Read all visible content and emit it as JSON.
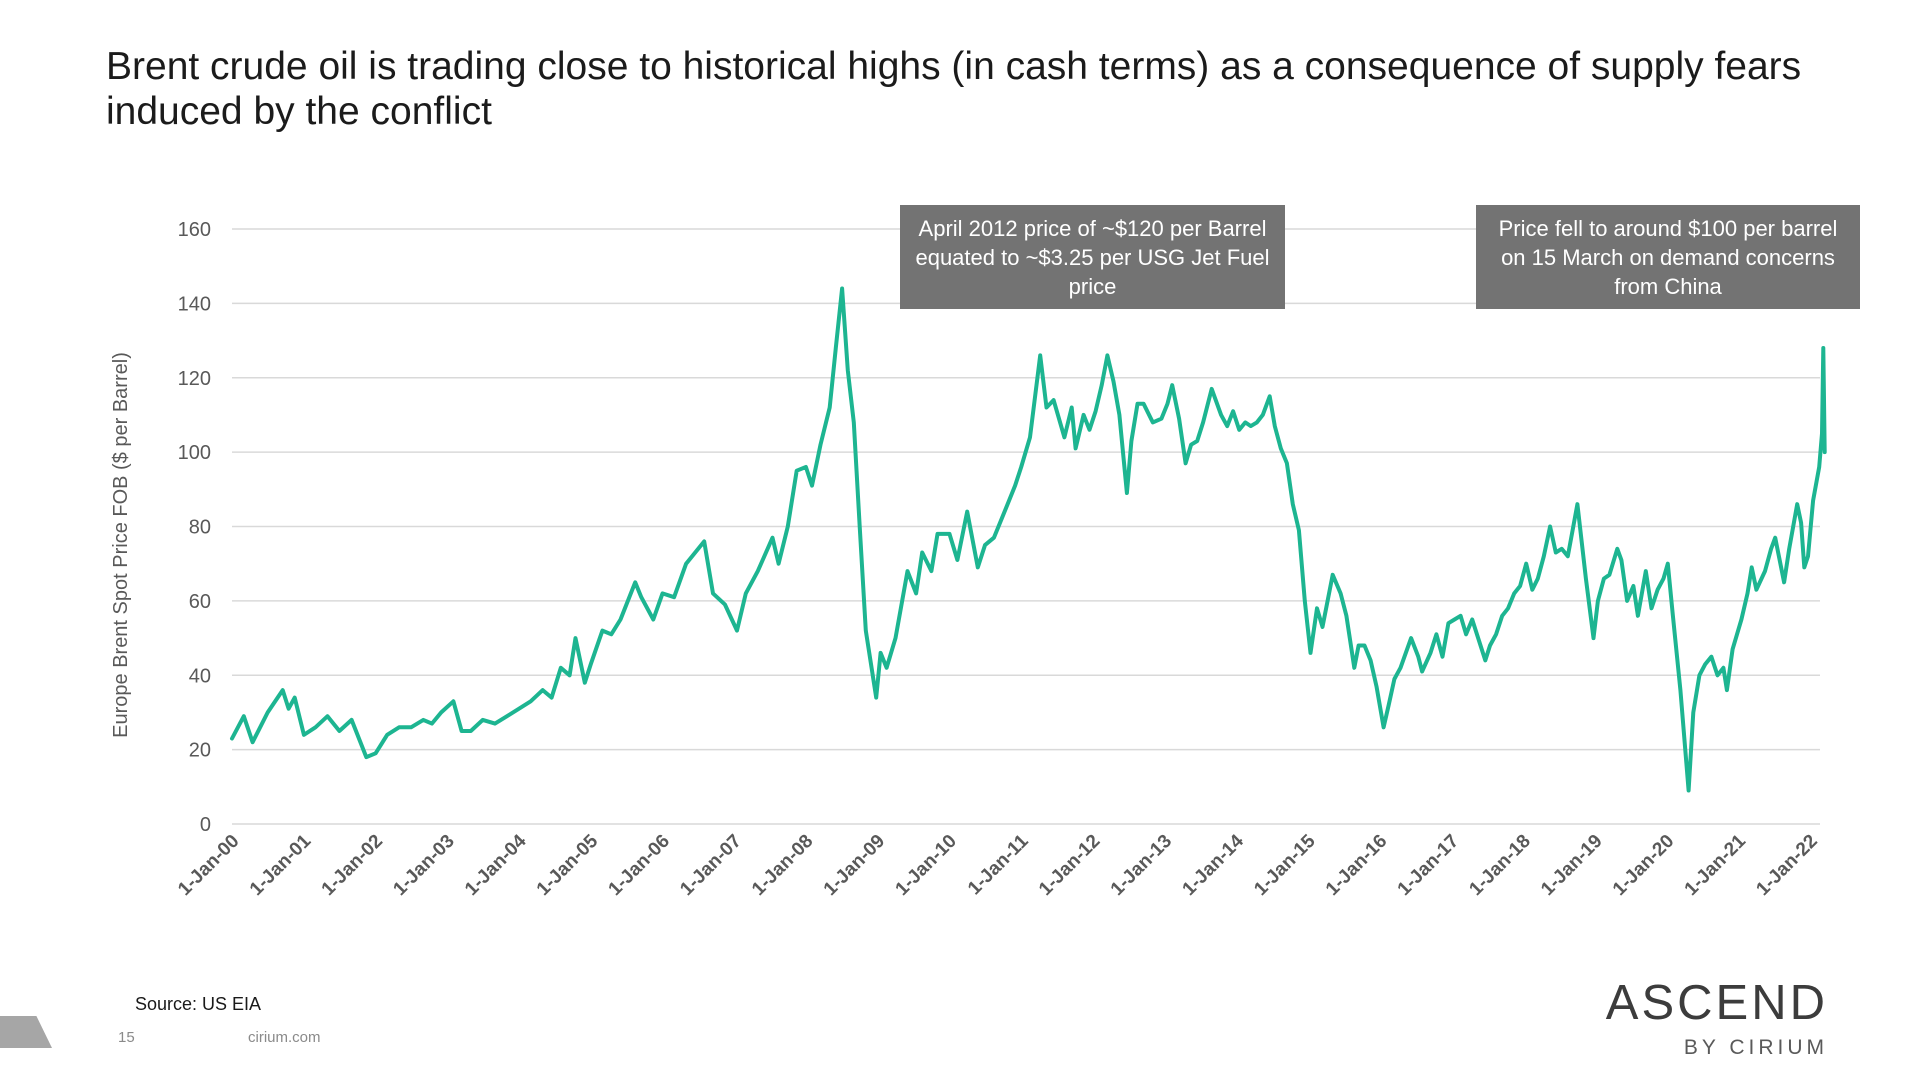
{
  "slide": {
    "title": "Brent crude oil is trading close to historical highs (in cash terms) as a consequence of supply fears induced by the conflict",
    "source": "Source: US EIA",
    "page_number": "15",
    "website": "cirium.com",
    "logo": {
      "main": "ASCEND",
      "sub": "BY CIRIUM"
    }
  },
  "callouts": [
    "April 2012 price of ~$120 per Barrel equated to ~$3.25 per USG Jet Fuel price",
    "Price fell to around $100 per barrel on 15 March on demand concerns from China"
  ],
  "colors": {
    "series": "#1db591",
    "gridline": "#d9d9d9",
    "axis_text": "#595959",
    "callout_bg": "#737373"
  },
  "chart_data": {
    "type": "line",
    "title": "",
    "xlabel": "",
    "ylabel": "Europe Brent Spot Price FOB ($ per Barrel)",
    "ylim": [
      0,
      160
    ],
    "yticks": [
      0,
      20,
      40,
      60,
      80,
      100,
      120,
      140,
      160
    ],
    "xlim": [
      "2000-01-01",
      "2022-03-15"
    ],
    "x_tick_labels": [
      "1-Jan-00",
      "1-Jan-01",
      "1-Jan-02",
      "1-Jan-03",
      "1-Jan-04",
      "1-Jan-05",
      "1-Jan-06",
      "1-Jan-07",
      "1-Jan-08",
      "1-Jan-09",
      "1-Jan-10",
      "1-Jan-11",
      "1-Jan-12",
      "1-Jan-13",
      "1-Jan-14",
      "1-Jan-15",
      "1-Jan-16",
      "1-Jan-17",
      "1-Jan-18",
      "1-Jan-19",
      "1-Jan-20",
      "1-Jan-21",
      "1-Jan-22"
    ],
    "grid": true,
    "legend": "none",
    "series": [
      {
        "points": [
          [
            "2000-01-01",
            23
          ],
          [
            "2000-03-01",
            29
          ],
          [
            "2000-04-15",
            22
          ],
          [
            "2000-07-01",
            30
          ],
          [
            "2000-09-15",
            36
          ],
          [
            "2000-10-15",
            31
          ],
          [
            "2000-11-15",
            34
          ],
          [
            "2001-01-01",
            24
          ],
          [
            "2001-03-01",
            26
          ],
          [
            "2001-05-01",
            29
          ],
          [
            "2001-07-01",
            25
          ],
          [
            "2001-09-01",
            28
          ],
          [
            "2001-11-15",
            18
          ],
          [
            "2002-01-01",
            19
          ],
          [
            "2002-03-01",
            24
          ],
          [
            "2002-05-01",
            26
          ],
          [
            "2002-07-01",
            26
          ],
          [
            "2002-09-01",
            28
          ],
          [
            "2002-10-15",
            27
          ],
          [
            "2002-12-01",
            30
          ],
          [
            "2003-02-01",
            33
          ],
          [
            "2003-03-15",
            25
          ],
          [
            "2003-05-01",
            25
          ],
          [
            "2003-07-01",
            28
          ],
          [
            "2003-09-01",
            27
          ],
          [
            "2003-11-01",
            29
          ],
          [
            "2004-01-01",
            31
          ],
          [
            "2004-03-01",
            33
          ],
          [
            "2004-05-01",
            36
          ],
          [
            "2004-06-15",
            34
          ],
          [
            "2004-08-01",
            42
          ],
          [
            "2004-09-15",
            40
          ],
          [
            "2004-10-15",
            50
          ],
          [
            "2004-12-01",
            38
          ],
          [
            "2005-01-01",
            43
          ],
          [
            "2005-03-01",
            52
          ],
          [
            "2005-04-15",
            51
          ],
          [
            "2005-06-01",
            55
          ],
          [
            "2005-08-15",
            65
          ],
          [
            "2005-09-15",
            61
          ],
          [
            "2005-11-15",
            55
          ],
          [
            "2006-01-01",
            62
          ],
          [
            "2006-03-01",
            61
          ],
          [
            "2006-05-01",
            70
          ],
          [
            "2006-08-01",
            76
          ],
          [
            "2006-09-15",
            62
          ],
          [
            "2006-11-15",
            59
          ],
          [
            "2007-01-15",
            52
          ],
          [
            "2007-03-01",
            62
          ],
          [
            "2007-05-01",
            68
          ],
          [
            "2007-07-15",
            77
          ],
          [
            "2007-08-15",
            70
          ],
          [
            "2007-10-01",
            80
          ],
          [
            "2007-11-15",
            95
          ],
          [
            "2008-01-01",
            96
          ],
          [
            "2008-02-01",
            91
          ],
          [
            "2008-03-15",
            102
          ],
          [
            "2008-05-01",
            112
          ],
          [
            "2008-06-01",
            128
          ],
          [
            "2008-07-03",
            144
          ],
          [
            "2008-08-01",
            122
          ],
          [
            "2008-09-01",
            108
          ],
          [
            "2008-10-01",
            80
          ],
          [
            "2008-11-01",
            52
          ],
          [
            "2008-12-24",
            34
          ],
          [
            "2009-01-15",
            46
          ],
          [
            "2009-02-15",
            42
          ],
          [
            "2009-04-01",
            50
          ],
          [
            "2009-06-01",
            68
          ],
          [
            "2009-07-15",
            62
          ],
          [
            "2009-08-15",
            73
          ],
          [
            "2009-10-01",
            68
          ],
          [
            "2009-11-01",
            78
          ],
          [
            "2010-01-01",
            78
          ],
          [
            "2010-02-10",
            71
          ],
          [
            "2010-04-01",
            84
          ],
          [
            "2010-05-25",
            69
          ],
          [
            "2010-07-01",
            75
          ],
          [
            "2010-08-15",
            77
          ],
          [
            "2010-10-01",
            83
          ],
          [
            "2010-12-01",
            91
          ],
          [
            "2011-01-01",
            96
          ],
          [
            "2011-02-15",
            104
          ],
          [
            "2011-04-08",
            126
          ],
          [
            "2011-05-10",
            112
          ],
          [
            "2011-06-15",
            114
          ],
          [
            "2011-08-09",
            104
          ],
          [
            "2011-09-15",
            112
          ],
          [
            "2011-10-05",
            101
          ],
          [
            "2011-11-15",
            110
          ],
          [
            "2011-12-15",
            106
          ],
          [
            "2012-01-15",
            111
          ],
          [
            "2012-02-15",
            118
          ],
          [
            "2012-03-15",
            126
          ],
          [
            "2012-04-15",
            119
          ],
          [
            "2012-05-15",
            110
          ],
          [
            "2012-06-22",
            89
          ],
          [
            "2012-07-15",
            103
          ],
          [
            "2012-08-15",
            113
          ],
          [
            "2012-09-15",
            113
          ],
          [
            "2012-11-01",
            108
          ],
          [
            "2012-12-15",
            109
          ],
          [
            "2013-01-15",
            113
          ],
          [
            "2013-02-08",
            118
          ],
          [
            "2013-03-15",
            109
          ],
          [
            "2013-04-17",
            97
          ],
          [
            "2013-05-15",
            102
          ],
          [
            "2013-06-15",
            103
          ],
          [
            "2013-07-15",
            108
          ],
          [
            "2013-08-28",
            117
          ],
          [
            "2013-10-15",
            110
          ],
          [
            "2013-11-15",
            107
          ],
          [
            "2013-12-15",
            111
          ],
          [
            "2014-01-15",
            106
          ],
          [
            "2014-02-15",
            108
          ],
          [
            "2014-03-15",
            107
          ],
          [
            "2014-04-15",
            108
          ],
          [
            "2014-05-15",
            110
          ],
          [
            "2014-06-19",
            115
          ],
          [
            "2014-07-15",
            107
          ],
          [
            "2014-08-15",
            101
          ],
          [
            "2014-09-15",
            97
          ],
          [
            "2014-10-15",
            86
          ],
          [
            "2014-11-15",
            79
          ],
          [
            "2014-12-15",
            60
          ],
          [
            "2015-01-13",
            46
          ],
          [
            "2015-02-15",
            58
          ],
          [
            "2015-03-15",
            53
          ],
          [
            "2015-05-06",
            67
          ],
          [
            "2015-06-15",
            62
          ],
          [
            "2015-07-15",
            56
          ],
          [
            "2015-08-24",
            42
          ],
          [
            "2015-09-15",
            48
          ],
          [
            "2015-10-15",
            48
          ],
          [
            "2015-11-15",
            44
          ],
          [
            "2015-12-15",
            37
          ],
          [
            "2016-01-20",
            26
          ],
          [
            "2016-02-15",
            32
          ],
          [
            "2016-03-15",
            39
          ],
          [
            "2016-04-15",
            42
          ],
          [
            "2016-06-08",
            50
          ],
          [
            "2016-07-15",
            45
          ],
          [
            "2016-08-03",
            41
          ],
          [
            "2016-09-15",
            46
          ],
          [
            "2016-10-15",
            51
          ],
          [
            "2016-11-15",
            45
          ],
          [
            "2016-12-15",
            54
          ],
          [
            "2017-01-15",
            55
          ],
          [
            "2017-02-15",
            56
          ],
          [
            "2017-03-15",
            51
          ],
          [
            "2017-04-15",
            55
          ],
          [
            "2017-06-21",
            44
          ],
          [
            "2017-07-15",
            48
          ],
          [
            "2017-08-15",
            51
          ],
          [
            "2017-09-15",
            56
          ],
          [
            "2017-10-15",
            58
          ],
          [
            "2017-11-15",
            62
          ],
          [
            "2017-12-15",
            64
          ],
          [
            "2018-01-15",
            70
          ],
          [
            "2018-02-15",
            63
          ],
          [
            "2018-03-15",
            66
          ],
          [
            "2018-04-15",
            72
          ],
          [
            "2018-05-17",
            80
          ],
          [
            "2018-06-15",
            73
          ],
          [
            "2018-07-15",
            74
          ],
          [
            "2018-08-15",
            72
          ],
          [
            "2018-10-03",
            86
          ],
          [
            "2018-11-15",
            66
          ],
          [
            "2018-12-24",
            50
          ],
          [
            "2019-01-15",
            60
          ],
          [
            "2019-02-15",
            66
          ],
          [
            "2019-03-15",
            67
          ],
          [
            "2019-04-24",
            74
          ],
          [
            "2019-05-15",
            71
          ],
          [
            "2019-06-13",
            60
          ],
          [
            "2019-07-15",
            64
          ],
          [
            "2019-08-07",
            56
          ],
          [
            "2019-09-16",
            68
          ],
          [
            "2019-10-15",
            58
          ],
          [
            "2019-11-15",
            63
          ],
          [
            "2019-12-15",
            66
          ],
          [
            "2020-01-06",
            70
          ],
          [
            "2020-02-01",
            56
          ],
          [
            "2020-03-10",
            36
          ],
          [
            "2020-04-21",
            9
          ],
          [
            "2020-05-15",
            30
          ],
          [
            "2020-06-15",
            40
          ],
          [
            "2020-07-15",
            43
          ],
          [
            "2020-08-15",
            45
          ],
          [
            "2020-09-15",
            40
          ],
          [
            "2020-10-15",
            42
          ],
          [
            "2020-11-02",
            36
          ],
          [
            "2020-12-01",
            47
          ],
          [
            "2021-01-15",
            55
          ],
          [
            "2021-02-15",
            62
          ],
          [
            "2021-03-08",
            69
          ],
          [
            "2021-04-01",
            63
          ],
          [
            "2021-05-15",
            68
          ],
          [
            "2021-06-15",
            74
          ],
          [
            "2021-07-06",
            77
          ],
          [
            "2021-08-20",
            65
          ],
          [
            "2021-09-15",
            74
          ],
          [
            "2021-10-26",
            86
          ],
          [
            "2021-11-15",
            81
          ],
          [
            "2021-12-01",
            69
          ],
          [
            "2021-12-20",
            72
          ],
          [
            "2022-01-15",
            87
          ],
          [
            "2022-02-15",
            96
          ],
          [
            "2022-03-01",
            105
          ],
          [
            "2022-03-08",
            128
          ],
          [
            "2022-03-15",
            100
          ]
        ]
      }
    ]
  }
}
